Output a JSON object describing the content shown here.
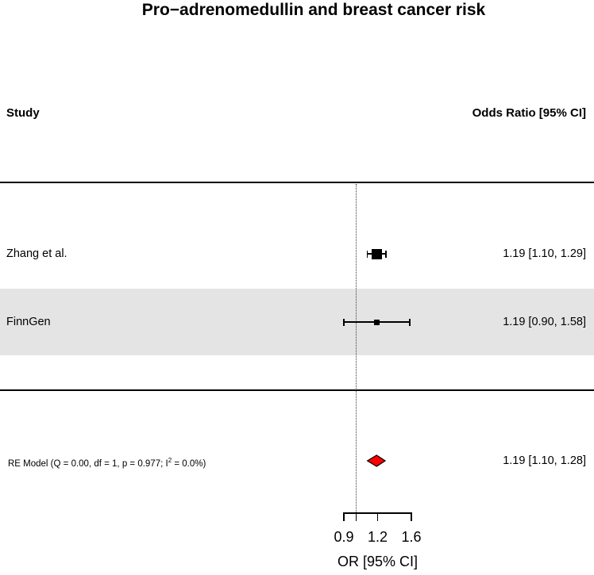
{
  "title": "Pro−adrenomedullin and breast cancer risk",
  "columns": {
    "study": "Study",
    "odds_ratio": "Odds Ratio [95% CI]"
  },
  "chart_data": {
    "type": "forest",
    "x_scale": "log",
    "title": "Pro−adrenomedullin and breast cancer risk",
    "xlabel": "OR [95% CI]",
    "x_range": [
      0.9,
      1.6
    ],
    "reference_line": 1.0,
    "grid": false,
    "studies": [
      {
        "label": "Zhang et al.",
        "or": 1.19,
        "ci_low": 1.1,
        "ci_high": 1.29,
        "display": "1.19 [1.10, 1.29]",
        "marker_px": 13,
        "shaded_row": false
      },
      {
        "label": "FinnGen",
        "or": 1.19,
        "ci_low": 0.9,
        "ci_high": 1.58,
        "display": "1.19 [0.90, 1.58]",
        "marker_px": 7,
        "shaded_row": true
      }
    ],
    "summary": {
      "label_pre": "RE Model (Q = 0.00, df = 1, p = 0.977; I",
      "label_sup": "2",
      "label_post": " = 0.0%)",
      "or": 1.19,
      "ci_low": 1.1,
      "ci_high": 1.28,
      "display": "1.19 [1.10, 1.28]"
    },
    "axis": {
      "ticks": [
        {
          "value": 0.9,
          "label": "0.9"
        },
        {
          "value": 1.0,
          "label": ""
        },
        {
          "value": 1.2,
          "label": "1.2"
        },
        {
          "value": 1.6,
          "label": "1.6"
        }
      ],
      "label": "OR [95% CI]"
    }
  },
  "colors": {
    "diamond_fill": "#ff0000",
    "diamond_stroke": "#000000",
    "shade_band": "#e4e4e4",
    "line": "#000000"
  }
}
